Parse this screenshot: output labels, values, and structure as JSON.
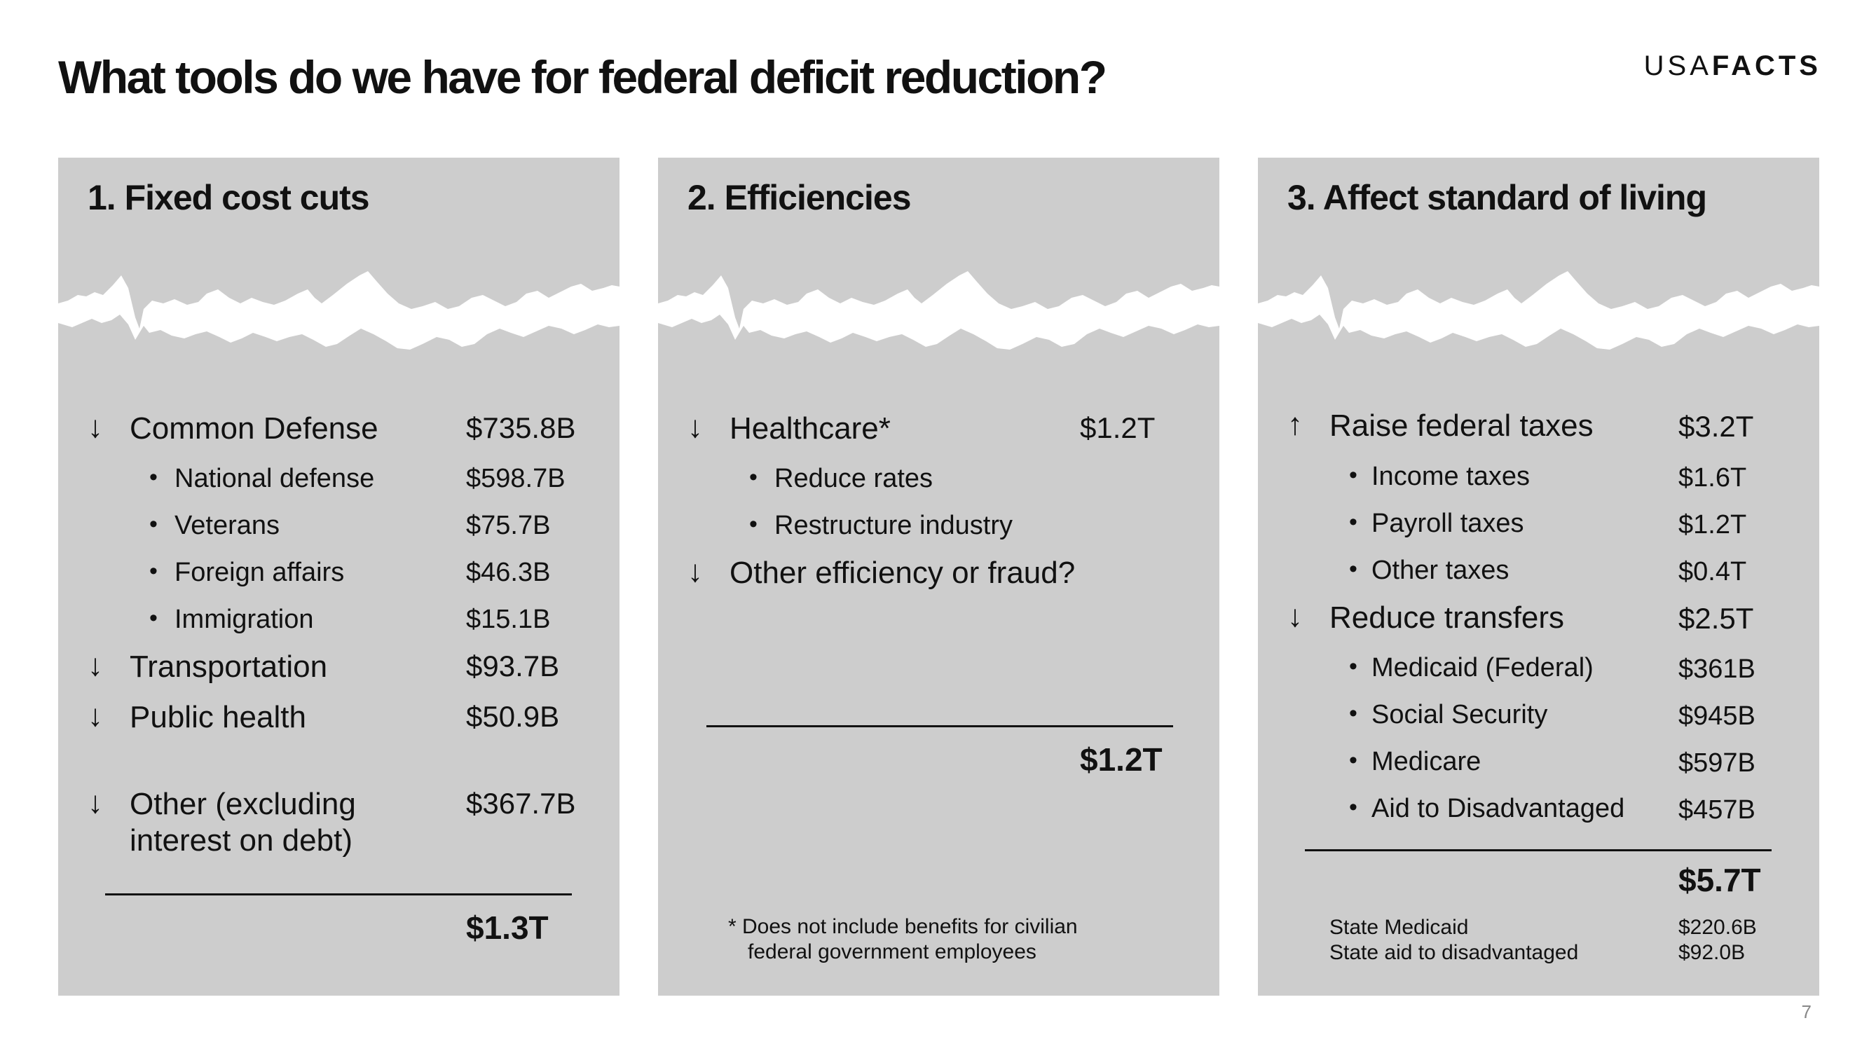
{
  "title": "What tools do we have for federal deficit reduction?",
  "logo": {
    "part1": "USA",
    "part2": "FACTS"
  },
  "page_number": "7",
  "panels": [
    {
      "title": "1. Fixed cost cuts",
      "items": [
        {
          "arrow": "↓",
          "label": "Common Defense",
          "value": "$735.8B"
        },
        {
          "bullet": "•",
          "label": "National defense",
          "value": "$598.7B"
        },
        {
          "bullet": "•",
          "label": "Veterans",
          "value": "$75.7B"
        },
        {
          "bullet": "•",
          "label": "Foreign affairs",
          "value": "$46.3B"
        },
        {
          "bullet": "•",
          "label": "Immigration",
          "value": "$15.1B"
        },
        {
          "arrow": "↓",
          "label": "Transportation",
          "value": "$93.7B"
        },
        {
          "arrow": "↓",
          "label": "Public health",
          "value": "$50.9B"
        },
        {
          "arrow": "↓",
          "label": "Other (excluding",
          "label2": "interest on debt)",
          "value": "$367.7B"
        }
      ],
      "total": "$1.3T"
    },
    {
      "title": "2. Efficiencies",
      "items": [
        {
          "arrow": "↓",
          "label": "Healthcare*",
          "value": "$1.2T"
        },
        {
          "bullet": "•",
          "label": "Reduce rates"
        },
        {
          "bullet": "•",
          "label": "Restructure industry"
        },
        {
          "arrow": "↓",
          "label": "Other efficiency or fraud?"
        }
      ],
      "total": "$1.2T",
      "footnote": [
        "* Does not include benefits for civilian",
        "federal government employees"
      ]
    },
    {
      "title": "3. Affect standard of living",
      "items": [
        {
          "arrow": "↑",
          "label": "Raise federal taxes",
          "value": "$3.2T"
        },
        {
          "bullet": "•",
          "label": "Income taxes",
          "value": "$1.6T"
        },
        {
          "bullet": "•",
          "label": "Payroll taxes",
          "value": "$1.2T"
        },
        {
          "bullet": "•",
          "label": "Other taxes",
          "value": "$0.4T"
        },
        {
          "arrow": "↓",
          "label": "Reduce transfers",
          "value": "$2.5T"
        },
        {
          "bullet": "•",
          "label": "Medicaid (Federal)",
          "value": "$361B"
        },
        {
          "bullet": "•",
          "label": "Social Security",
          "value": "$945B"
        },
        {
          "bullet": "•",
          "label": "Medicare",
          "value": "$597B"
        },
        {
          "bullet": "•",
          "label": "Aid to Disadvantaged",
          "value": "$457B"
        }
      ],
      "total": "$5.7T",
      "state_rows": [
        {
          "label": "State Medicaid",
          "value": "$220.6B"
        },
        {
          "label": "State aid to disadvantaged",
          "value": "$92.0B"
        }
      ]
    }
  ]
}
